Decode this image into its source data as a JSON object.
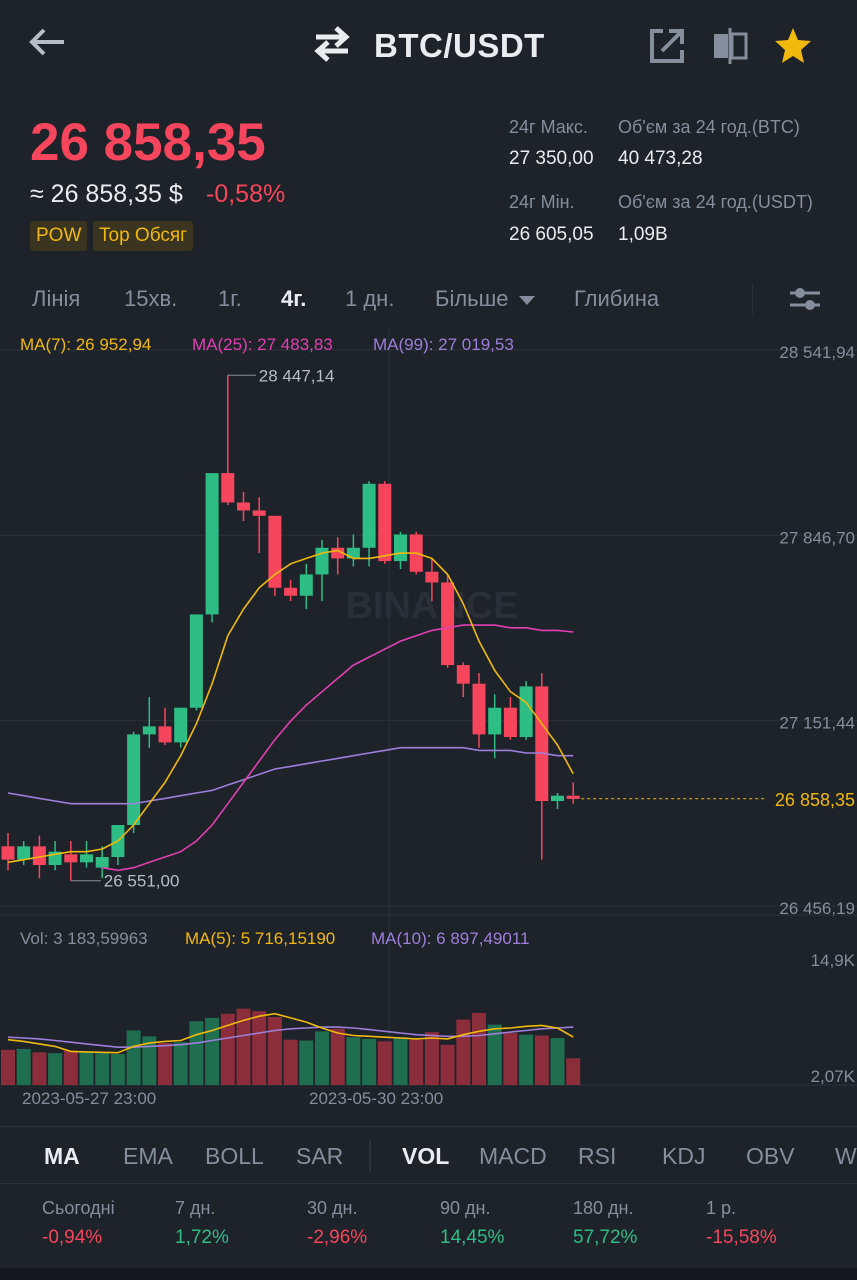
{
  "header": {
    "pair": "BTC/USDT",
    "icons": [
      "back-arrow-icon",
      "swap-icon",
      "share-icon",
      "compare-icon",
      "star-icon"
    ],
    "accent_star": "#f0b90b"
  },
  "price": {
    "last": "26 858,35",
    "fiat": "≈ 26 858,35 $",
    "change": "-0,58%",
    "tags": [
      "POW",
      "Top Обсяг"
    ]
  },
  "stats": {
    "high_label": "24г Макс.",
    "high_value": "27 350,00",
    "vol_btc_label": "Об'єм за 24 год.(BTC)",
    "vol_btc_value": "40 473,28",
    "low_label": "24г Мін.",
    "low_value": "26 605,05",
    "vol_usdt_label": "Об'єм за 24 год.(USDT)",
    "vol_usdt_value": "1,09B"
  },
  "timeframes": {
    "line": "Лінія",
    "m15": "15хв.",
    "h1": "1г.",
    "h4": "4г.",
    "d1": "1 дн.",
    "more": "Більше",
    "depth": "Глибина"
  },
  "chart_data": {
    "type": "candlestick",
    "interval": "4h",
    "ma_legend": {
      "ma7": "MA(7): 26 952,94",
      "ma25": "MA(25): 27 483,83",
      "ma99": "MA(99): 27 019,53"
    },
    "price_axis_labels": [
      "28 541,94",
      "27 846,70",
      "27 151,44",
      "26 456,19"
    ],
    "ylim": [
      26456.19,
      28541.94
    ],
    "current_price_label": "26 858,35",
    "high_marker": "28 447,14",
    "low_marker": "26 551,00",
    "watermark": "BINANCE",
    "candles": [
      {
        "o": 26680,
        "h": 26730,
        "l": 26590,
        "c": 26630
      },
      {
        "o": 26630,
        "h": 26700,
        "l": 26610,
        "c": 26680
      },
      {
        "o": 26680,
        "h": 26720,
        "l": 26560,
        "c": 26610
      },
      {
        "o": 26610,
        "h": 26700,
        "l": 26590,
        "c": 26660
      },
      {
        "o": 26650,
        "h": 26700,
        "l": 26551,
        "c": 26620
      },
      {
        "o": 26620,
        "h": 26700,
        "l": 26600,
        "c": 26650
      },
      {
        "o": 26600,
        "h": 26680,
        "l": 26560,
        "c": 26640
      },
      {
        "o": 26640,
        "h": 26760,
        "l": 26610,
        "c": 26760
      },
      {
        "o": 26760,
        "h": 27110,
        "l": 26730,
        "c": 27100
      },
      {
        "o": 27100,
        "h": 27240,
        "l": 27050,
        "c": 27130
      },
      {
        "o": 27130,
        "h": 27200,
        "l": 27060,
        "c": 27070
      },
      {
        "o": 27070,
        "h": 27200,
        "l": 27050,
        "c": 27200
      },
      {
        "o": 27200,
        "h": 27550,
        "l": 27190,
        "c": 27550
      },
      {
        "o": 27550,
        "h": 28080,
        "l": 27520,
        "c": 28080
      },
      {
        "o": 28080,
        "h": 28447,
        "l": 27960,
        "c": 27970
      },
      {
        "o": 27970,
        "h": 28010,
        "l": 27900,
        "c": 27940
      },
      {
        "o": 27940,
        "h": 27990,
        "l": 27780,
        "c": 27920
      },
      {
        "o": 27920,
        "h": 27910,
        "l": 27620,
        "c": 27650
      },
      {
        "o": 27650,
        "h": 27680,
        "l": 27600,
        "c": 27620
      },
      {
        "o": 27620,
        "h": 27740,
        "l": 27570,
        "c": 27700
      },
      {
        "o": 27700,
        "h": 27830,
        "l": 27600,
        "c": 27800
      },
      {
        "o": 27800,
        "h": 27840,
        "l": 27700,
        "c": 27760
      },
      {
        "o": 27760,
        "h": 27850,
        "l": 27730,
        "c": 27800
      },
      {
        "o": 27800,
        "h": 28050,
        "l": 27730,
        "c": 28040
      },
      {
        "o": 28040,
        "h": 28050,
        "l": 27740,
        "c": 27750
      },
      {
        "o": 27750,
        "h": 27860,
        "l": 27720,
        "c": 27850
      },
      {
        "o": 27850,
        "h": 27860,
        "l": 27700,
        "c": 27710
      },
      {
        "o": 27710,
        "h": 27760,
        "l": 27600,
        "c": 27670
      },
      {
        "o": 27670,
        "h": 27700,
        "l": 27350,
        "c": 27360
      },
      {
        "o": 27360,
        "h": 27370,
        "l": 27240,
        "c": 27290
      },
      {
        "o": 27290,
        "h": 27330,
        "l": 27050,
        "c": 27100
      },
      {
        "o": 27100,
        "h": 27250,
        "l": 27010,
        "c": 27200
      },
      {
        "o": 27200,
        "h": 27240,
        "l": 27080,
        "c": 27090
      },
      {
        "o": 27090,
        "h": 27300,
        "l": 27080,
        "c": 27280
      },
      {
        "o": 27280,
        "h": 27330,
        "l": 26630,
        "c": 26850
      },
      {
        "o": 26850,
        "h": 26880,
        "l": 26820,
        "c": 26870
      },
      {
        "o": 26870,
        "h": 26920,
        "l": 26840,
        "c": 26858
      }
    ],
    "ma7": [
      26620,
      26630,
      26640,
      26650,
      26660,
      26660,
      26670,
      26700,
      26760,
      26840,
      26920,
      27020,
      27140,
      27290,
      27470,
      27570,
      27650,
      27700,
      27740,
      27760,
      27780,
      27790,
      27760,
      27760,
      27770,
      27780,
      27780,
      27760,
      27700,
      27590,
      27450,
      27340,
      27260,
      27220,
      27140,
      27060,
      26952
    ],
    "ma25": [
      null,
      null,
      null,
      null,
      null,
      null,
      26600,
      26590,
      26600,
      26620,
      26640,
      26660,
      26700,
      26760,
      26840,
      26920,
      27000,
      27080,
      27150,
      27210,
      27260,
      27310,
      27360,
      27390,
      27420,
      27450,
      27470,
      27490,
      27500,
      27510,
      27510,
      27510,
      27500,
      27500,
      27490,
      27490,
      27484
    ],
    "ma99": [
      26880,
      26870,
      26860,
      26850,
      26840,
      26840,
      26840,
      26840,
      26840,
      26850,
      26860,
      26870,
      26880,
      26890,
      26910,
      26930,
      26950,
      26970,
      26980,
      26990,
      27000,
      27010,
      27020,
      27030,
      27040,
      27050,
      27050,
      27050,
      27050,
      27050,
      27040,
      27040,
      27040,
      27030,
      27030,
      27020,
      27020
    ],
    "volume": {
      "legend_vol": "Vol: 3 183,59963",
      "legend_ma5": "MA(5): 5 716,15190",
      "legend_ma10": "MA(10): 6 897,49011",
      "axis_labels": [
        "14,9K",
        "2,07K"
      ],
      "ylim": [
        2070,
        14900
      ],
      "values": [
        4200,
        4300,
        3900,
        3800,
        4100,
        3900,
        3800,
        3700,
        6500,
        5800,
        5000,
        5100,
        7600,
        8000,
        8500,
        9100,
        8800,
        8100,
        5400,
        5300,
        6400,
        6700,
        5700,
        5500,
        5200,
        5700,
        5400,
        6300,
        4800,
        7800,
        8600,
        7200,
        6200,
        6000,
        5900,
        5600,
        3184
      ],
      "ma5": [
        5400,
        5200,
        4900,
        4600,
        4000,
        3950,
        3900,
        3850,
        4600,
        5000,
        5200,
        5300,
        6000,
        6500,
        7100,
        7700,
        8200,
        8500,
        8000,
        7500,
        6800,
        6200,
        5900,
        5800,
        5700,
        5600,
        5500,
        5600,
        5500,
        6000,
        6400,
        6700,
        6800,
        7000,
        7100,
        6800,
        5716
      ],
      "ma10": [
        5700,
        5600,
        5500,
        5300,
        5100,
        4900,
        4700,
        4500,
        4500,
        4600,
        4700,
        4800,
        5000,
        5300,
        5600,
        5900,
        6200,
        6500,
        6700,
        6800,
        6900,
        6900,
        6800,
        6600,
        6400,
        6200,
        6000,
        5900,
        5800,
        5800,
        5900,
        6100,
        6300,
        6500,
        6700,
        6800,
        6897
      ]
    },
    "x_tick_labels": [
      "2023-05-27 23:00",
      "2023-05-30 23:00"
    ],
    "colors": {
      "up": "#2ebd85",
      "down": "#f6465d",
      "ma7": "#f0b90b",
      "ma25": "#e040b0",
      "ma99": "#9d7fd9",
      "grid": "#2b3139",
      "axis_text": "#848e9c"
    }
  },
  "indicators": [
    "MA",
    "EMA",
    "BOLL",
    "SAR",
    "VOL",
    "MACD",
    "RSI",
    "KDJ",
    "OBV",
    "W"
  ],
  "performance": [
    {
      "label": "Сьогодні",
      "value": "-0,94%",
      "trend": "down"
    },
    {
      "label": "7 дн.",
      "value": "1,72%",
      "trend": "up"
    },
    {
      "label": "30 дн.",
      "value": "-2,96%",
      "trend": "down"
    },
    {
      "label": "90 дн.",
      "value": "14,45%",
      "trend": "up"
    },
    {
      "label": "180 дн.",
      "value": "57,72%",
      "trend": "up"
    },
    {
      "label": "1 р.",
      "value": "-15,58%",
      "trend": "down"
    }
  ]
}
